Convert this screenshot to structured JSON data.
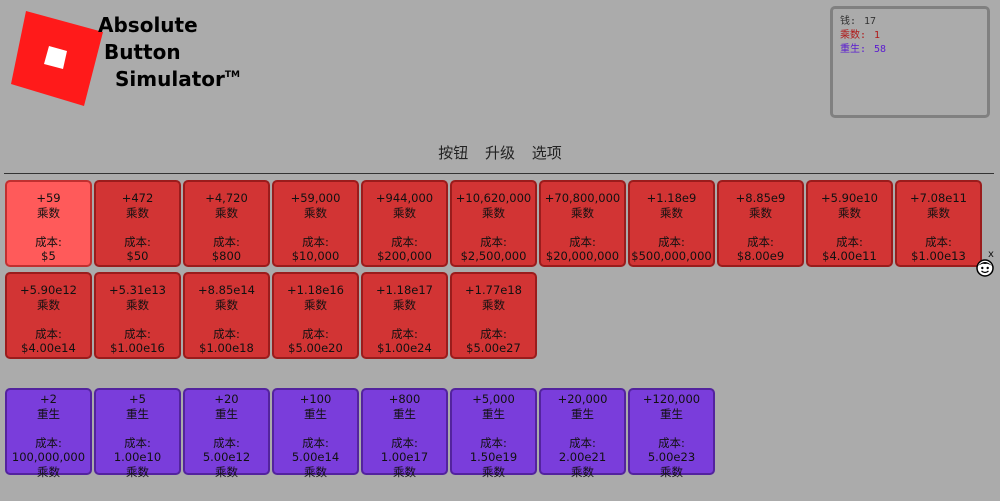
{
  "logo": {
    "line1": "Absolute",
    "line2": "Button",
    "line3": "Simulator",
    "tm": "TM",
    "color": "#ff1a1a"
  },
  "stats": [
    {
      "label": "钱:",
      "value": "17",
      "color": "#333333"
    },
    {
      "label": "乘数:",
      "value": "1",
      "color": "#b01818"
    },
    {
      "label": "重生:",
      "value": "58",
      "color": "#5a1bd0"
    }
  ],
  "tabs": [
    "按钮",
    "升级",
    "选项"
  ],
  "cost_label": "成本:",
  "multiplier_buttons": [
    {
      "gain": "+59",
      "type": "乘数",
      "cost": "$5"
    },
    {
      "gain": "+472",
      "type": "乘数",
      "cost": "$50"
    },
    {
      "gain": "+4,720",
      "type": "乘数",
      "cost": "$800"
    },
    {
      "gain": "+59,000",
      "type": "乘数",
      "cost": "$10,000"
    },
    {
      "gain": "+944,000",
      "type": "乘数",
      "cost": "$200,000"
    },
    {
      "gain": "+10,620,000",
      "type": "乘数",
      "cost": "$2,500,000"
    },
    {
      "gain": "+70,800,000",
      "type": "乘数",
      "cost": "$20,000,000"
    },
    {
      "gain": "+1.18e9",
      "type": "乘数",
      "cost": "$500,000,000"
    },
    {
      "gain": "+8.85e9",
      "type": "乘数",
      "cost": "$8.00e9"
    },
    {
      "gain": "+5.90e10",
      "type": "乘数",
      "cost": "$4.00e11"
    },
    {
      "gain": "+7.08e11",
      "type": "乘数",
      "cost": "$1.00e13"
    },
    {
      "gain": "+5.90e12",
      "type": "乘数",
      "cost": "$4.00e14"
    },
    {
      "gain": "+5.31e13",
      "type": "乘数",
      "cost": "$1.00e16"
    },
    {
      "gain": "+8.85e14",
      "type": "乘数",
      "cost": "$1.00e18"
    },
    {
      "gain": "+1.18e16",
      "type": "乘数",
      "cost": "$5.00e20"
    },
    {
      "gain": "+1.18e17",
      "type": "乘数",
      "cost": "$1.00e24"
    },
    {
      "gain": "+1.77e18",
      "type": "乘数",
      "cost": "$5.00e27"
    }
  ],
  "rebirth_buttons": [
    {
      "gain": "+2",
      "type": "重生",
      "cost": "100,000,000",
      "unit": "乘数"
    },
    {
      "gain": "+5",
      "type": "重生",
      "cost": "1.00e10",
      "unit": "乘数"
    },
    {
      "gain": "+20",
      "type": "重生",
      "cost": "5.00e12",
      "unit": "乘数"
    },
    {
      "gain": "+100",
      "type": "重生",
      "cost": "5.00e14",
      "unit": "乘数"
    },
    {
      "gain": "+800",
      "type": "重生",
      "cost": "1.00e17",
      "unit": "乘数"
    },
    {
      "gain": "+5,000",
      "type": "重生",
      "cost": "1.50e19",
      "unit": "乘数"
    },
    {
      "gain": "+20,000",
      "type": "重生",
      "cost": "2.00e21",
      "unit": "乘数"
    },
    {
      "gain": "+120,000",
      "type": "重生",
      "cost": "5.00e23",
      "unit": "乘数"
    }
  ],
  "widget": {
    "close": "x",
    "icon": "face-icon"
  }
}
